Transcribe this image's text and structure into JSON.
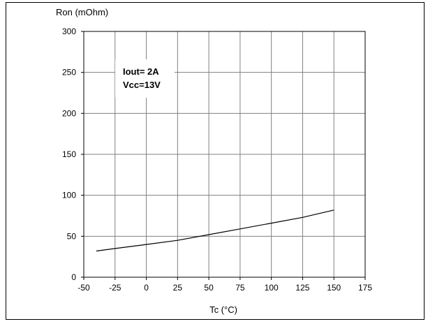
{
  "chart_data": {
    "type": "line",
    "title": "",
    "xlabel": "Tc (°C)",
    "ylabel": "Ron (mOhm)",
    "xlim": [
      -50,
      175
    ],
    "ylim": [
      0,
      300
    ],
    "x_ticks": [
      -50,
      -25,
      0,
      25,
      50,
      75,
      100,
      125,
      150,
      175
    ],
    "y_ticks": [
      0,
      50,
      100,
      150,
      200,
      250,
      300
    ],
    "grid": true,
    "legend": "none",
    "annotations": [
      "Iout= 2A",
      "Vcc=13V"
    ],
    "series": [
      {
        "color": "#000000",
        "x": [
          -40,
          -25,
          0,
          25,
          50,
          75,
          100,
          125,
          150
        ],
        "y": [
          32,
          35,
          40,
          45,
          52,
          59,
          66,
          73,
          82
        ]
      }
    ]
  }
}
